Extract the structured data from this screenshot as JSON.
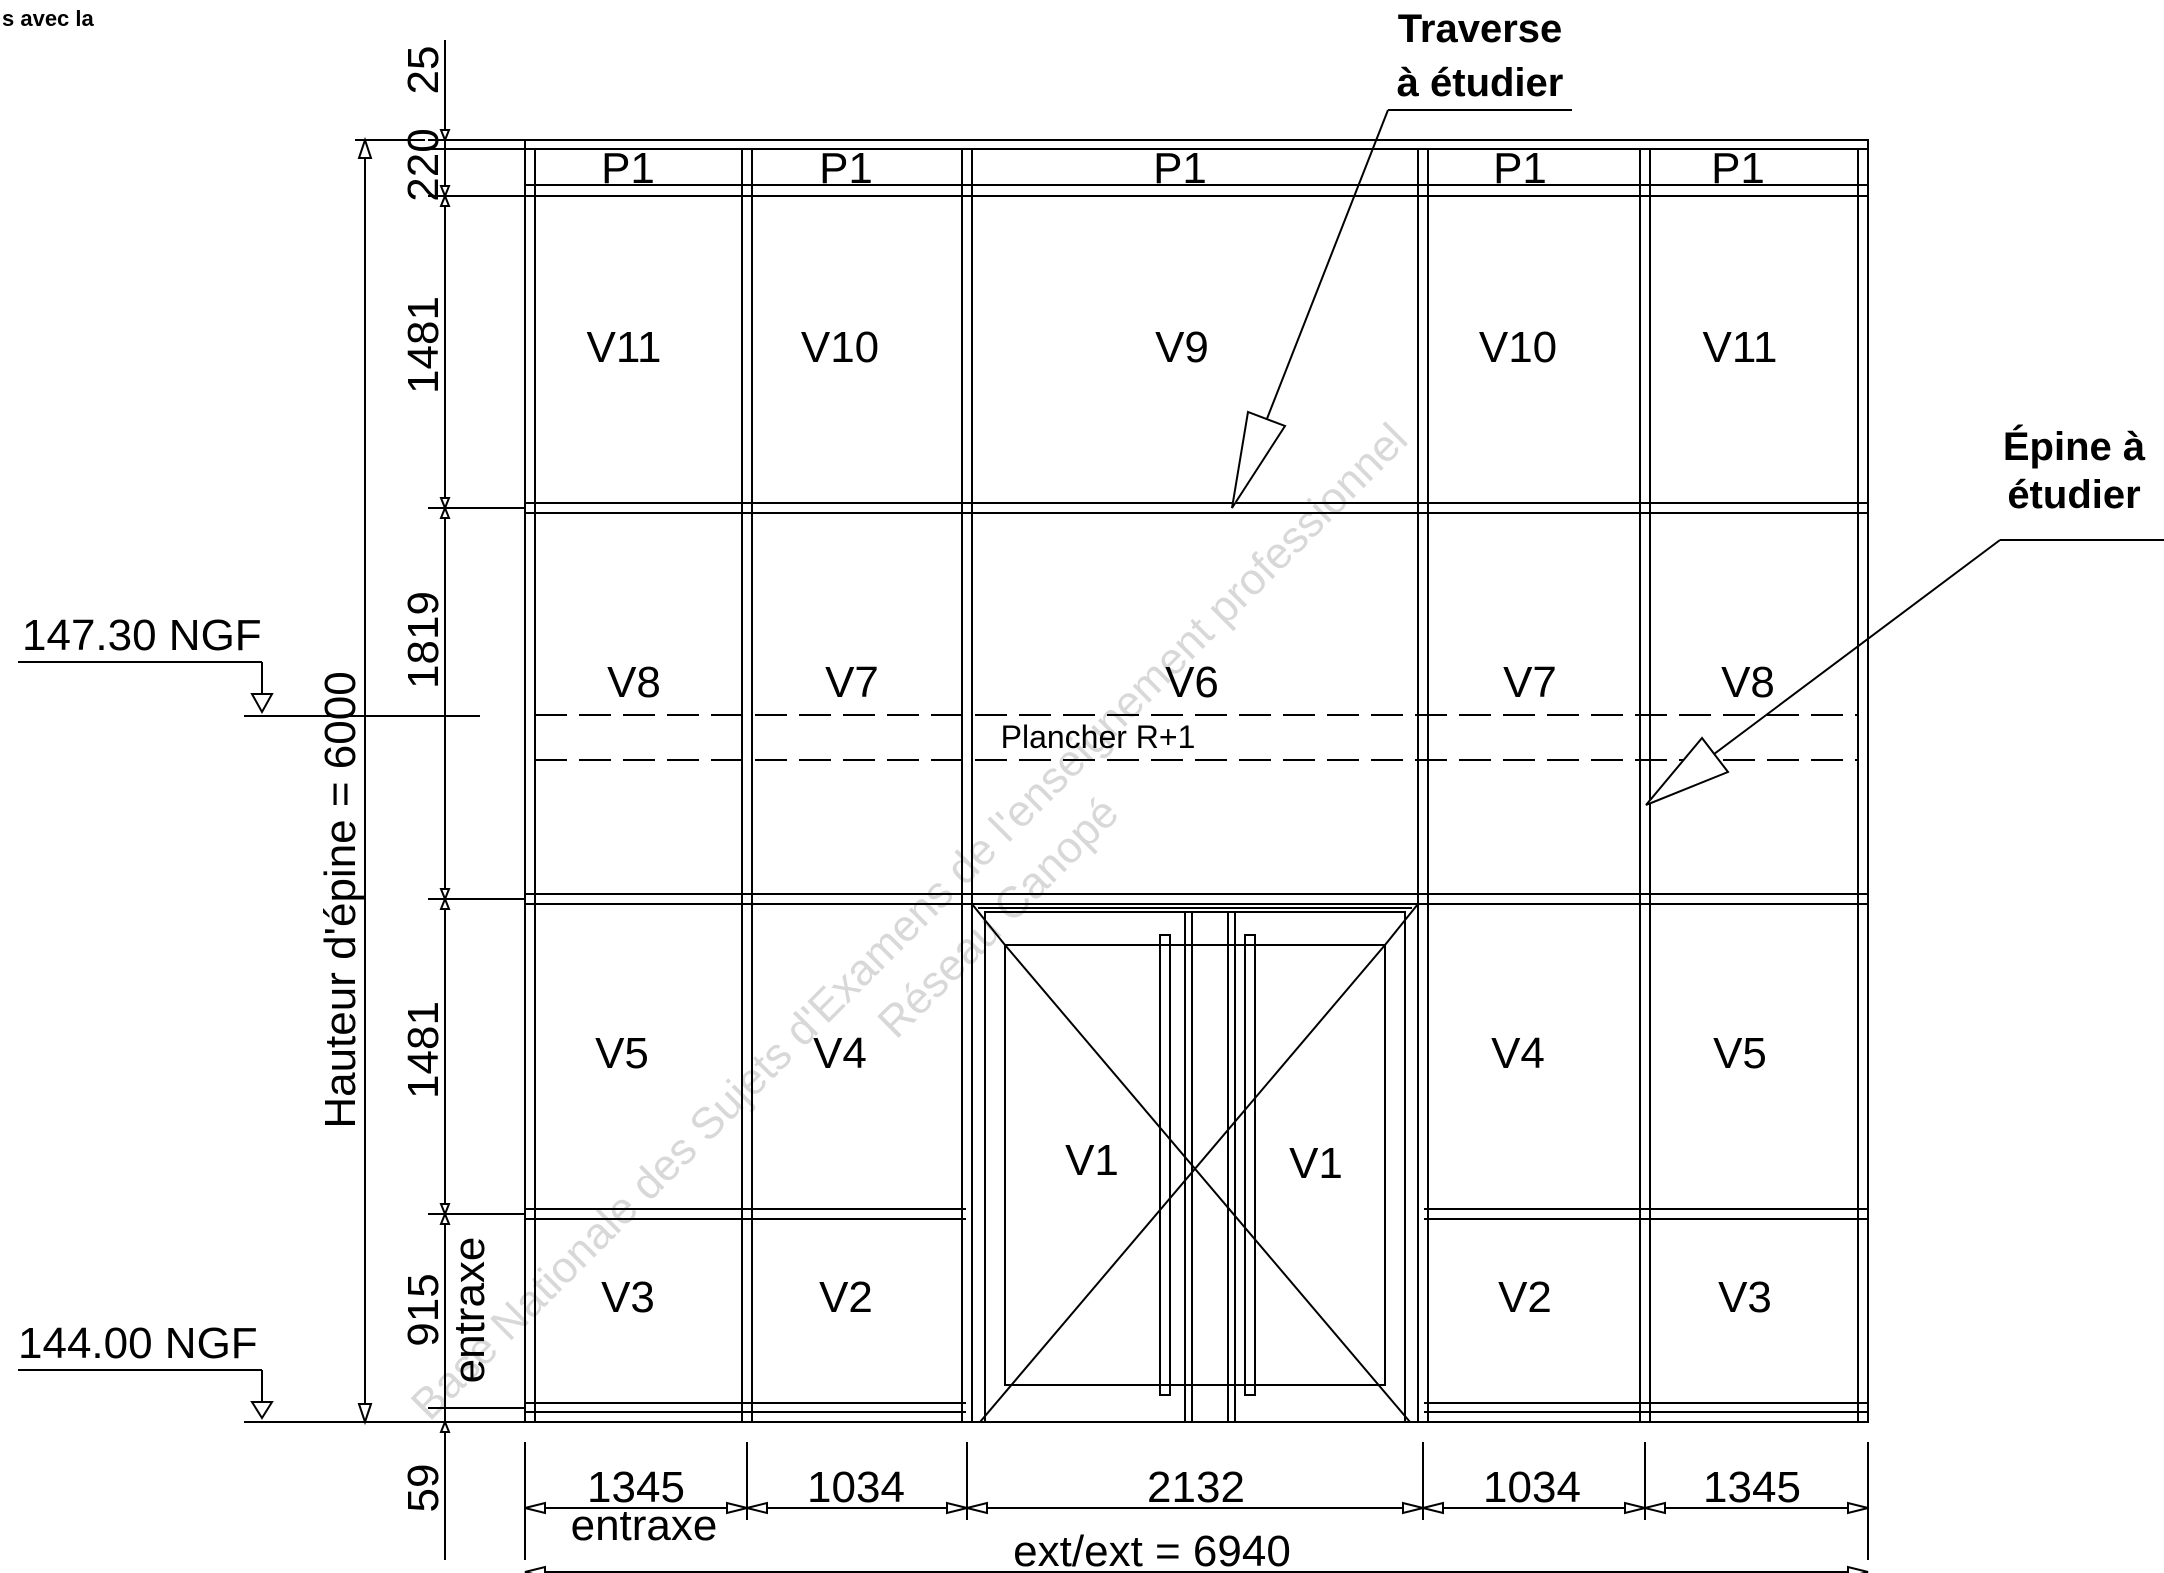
{
  "corner_text": "s avec la",
  "top_left_labels": {
    "callout_traverse": "Traverse\nà étudier",
    "callout_epine": "Épine à\nétudier"
  },
  "callouts": {
    "traverse_line1": "Traverse",
    "traverse_line2": "à étudier",
    "epine_line1": "Épine à",
    "epine_line2": "étudier"
  },
  "panels": {
    "row_p": [
      "P1",
      "P1",
      "P1",
      "P1",
      "P1"
    ],
    "row_top": [
      "V11",
      "V10",
      "V9",
      "V10",
      "V11"
    ],
    "row_mid": [
      "V8",
      "V7",
      "V6",
      "V7",
      "V8"
    ],
    "row_low_left": [
      "V5",
      "V4"
    ],
    "row_low_right": [
      "V4",
      "V5"
    ],
    "row_bottom_left": [
      "V3",
      "V2"
    ],
    "row_bottom_right": [
      "V2",
      "V3"
    ],
    "door": [
      "V1",
      "V1"
    ]
  },
  "plancher_label": "Plancher R+1",
  "vertical_dims": [
    "25",
    "220",
    "1481",
    "1819",
    "1481",
    "915",
    "59"
  ],
  "entraxe_vertical": "entraxe",
  "hauteur_label": "Hauteur d'épine = 6000",
  "levels": [
    "147.30 NGF",
    "144.00 NGF"
  ],
  "horizontal_dims": [
    "1345",
    "1034",
    "2132",
    "1034",
    "1345"
  ],
  "entraxe_horizontal": "entraxe",
  "overall_dim": "ext/ext = 6940",
  "watermark": {
    "line1": "Base Nationale des Sujets d'Examens de l'enseignement professionnel",
    "line2": "Réseau Canopé"
  }
}
